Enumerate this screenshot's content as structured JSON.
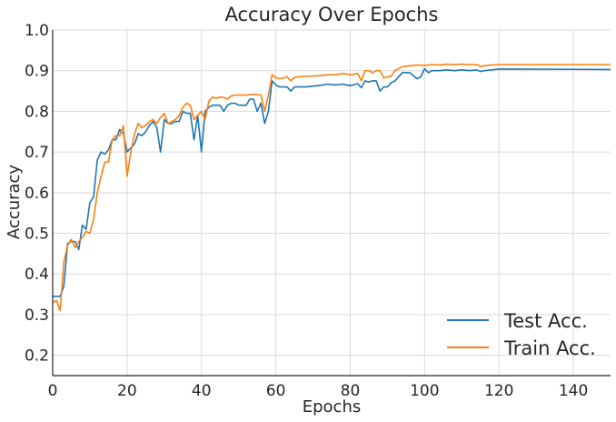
{
  "chart_data": {
    "type": "line",
    "title": "Accuracy Over Epochs",
    "xlabel": "Epochs",
    "ylabel": "Accuracy",
    "xlim": [
      0,
      150
    ],
    "ylim": [
      0.15,
      1.0
    ],
    "xticks": [
      0,
      20,
      40,
      60,
      80,
      100,
      120,
      140
    ],
    "yticks": [
      0.2,
      0.3,
      0.4,
      0.5,
      0.6,
      0.7,
      0.8,
      0.9,
      1.0
    ],
    "xtick_labels": [
      "0",
      "20",
      "40",
      "60",
      "80",
      "100",
      "120",
      "140"
    ],
    "ytick_labels": [
      "0.2",
      "0.3",
      "0.4",
      "0.5",
      "0.6",
      "0.7",
      "0.8",
      "0.9",
      "1.0"
    ],
    "grid": true,
    "legend_position": "bottom-right",
    "series": [
      {
        "name": "Test Acc.",
        "color": "#1f77b4",
        "x": [
          0,
          2,
          3,
          4,
          5,
          6,
          7,
          8,
          9,
          10,
          11,
          12,
          13,
          14,
          15,
          16,
          17,
          18,
          19,
          20,
          22,
          23,
          24,
          25,
          26,
          27,
          28,
          29,
          30,
          31,
          32,
          33,
          34,
          35,
          36,
          37,
          38,
          39,
          40,
          41,
          42,
          43,
          44,
          45,
          46,
          47,
          48,
          49,
          50,
          51,
          52,
          53,
          54,
          55,
          56,
          57,
          58,
          59,
          60,
          61,
          62,
          63,
          64,
          65,
          66,
          68,
          70,
          72,
          74,
          76,
          78,
          80,
          82,
          83,
          84,
          85,
          86,
          87,
          88,
          89,
          90,
          91,
          92,
          94,
          96,
          98,
          99,
          100,
          101,
          102,
          104,
          106,
          108,
          110,
          112,
          114,
          115,
          116,
          118,
          120,
          150
        ],
        "y": [
          0.345,
          0.345,
          0.37,
          0.475,
          0.48,
          0.48,
          0.46,
          0.52,
          0.51,
          0.575,
          0.59,
          0.68,
          0.7,
          0.695,
          0.705,
          0.73,
          0.73,
          0.755,
          0.745,
          0.7,
          0.72,
          0.745,
          0.74,
          0.75,
          0.765,
          0.775,
          0.76,
          0.7,
          0.78,
          0.77,
          0.77,
          0.775,
          0.775,
          0.8,
          0.795,
          0.795,
          0.73,
          0.79,
          0.7,
          0.8,
          0.81,
          0.815,
          0.815,
          0.815,
          0.8,
          0.815,
          0.82,
          0.82,
          0.815,
          0.815,
          0.815,
          0.83,
          0.83,
          0.8,
          0.82,
          0.77,
          0.8,
          0.875,
          0.865,
          0.86,
          0.86,
          0.86,
          0.85,
          0.86,
          0.86,
          0.86,
          0.862,
          0.864,
          0.867,
          0.865,
          0.867,
          0.863,
          0.868,
          0.858,
          0.875,
          0.872,
          0.875,
          0.875,
          0.85,
          0.86,
          0.86,
          0.87,
          0.875,
          0.895,
          0.895,
          0.88,
          0.885,
          0.905,
          0.895,
          0.9,
          0.9,
          0.902,
          0.9,
          0.902,
          0.9,
          0.902,
          0.898,
          0.9,
          0.902,
          0.904,
          0.903
        ]
      },
      {
        "name": "Train Acc.",
        "color": "#ff7f0e",
        "x": [
          0,
          1,
          2,
          3,
          4,
          5,
          6,
          7,
          8,
          9,
          10,
          11,
          12,
          13,
          14,
          15,
          16,
          17,
          18,
          19,
          20,
          21,
          22,
          23,
          24,
          25,
          26,
          27,
          28,
          29,
          30,
          31,
          32,
          33,
          34,
          35,
          36,
          37,
          38,
          39,
          40,
          41,
          42,
          43,
          44,
          45,
          46,
          47,
          48,
          49,
          50,
          52,
          54,
          56,
          57,
          58,
          59,
          60,
          61,
          62,
          63,
          64,
          65,
          66,
          68,
          70,
          72,
          74,
          76,
          78,
          80,
          82,
          83,
          84,
          85,
          86,
          87,
          88,
          89,
          90,
          91,
          92,
          94,
          96,
          98,
          100,
          102,
          104,
          106,
          108,
          110,
          112,
          114,
          115,
          116,
          118,
          120,
          150
        ],
        "y": [
          0.33,
          0.335,
          0.31,
          0.43,
          0.47,
          0.485,
          0.465,
          0.48,
          0.49,
          0.505,
          0.5,
          0.535,
          0.6,
          0.64,
          0.675,
          0.675,
          0.73,
          0.74,
          0.74,
          0.765,
          0.64,
          0.7,
          0.745,
          0.77,
          0.76,
          0.765,
          0.775,
          0.78,
          0.77,
          0.785,
          0.795,
          0.77,
          0.775,
          0.78,
          0.79,
          0.81,
          0.82,
          0.815,
          0.78,
          0.79,
          0.8,
          0.78,
          0.825,
          0.835,
          0.832,
          0.835,
          0.834,
          0.83,
          0.838,
          0.84,
          0.84,
          0.84,
          0.842,
          0.84,
          0.8,
          0.84,
          0.89,
          0.883,
          0.88,
          0.882,
          0.885,
          0.875,
          0.883,
          0.885,
          0.886,
          0.887,
          0.888,
          0.89,
          0.89,
          0.893,
          0.89,
          0.893,
          0.875,
          0.9,
          0.9,
          0.895,
          0.9,
          0.9,
          0.882,
          0.885,
          0.886,
          0.9,
          0.91,
          0.912,
          0.914,
          0.913,
          0.915,
          0.914,
          0.916,
          0.915,
          0.916,
          0.915,
          0.915,
          0.91,
          0.912,
          0.914,
          0.915,
          0.915
        ]
      }
    ]
  }
}
